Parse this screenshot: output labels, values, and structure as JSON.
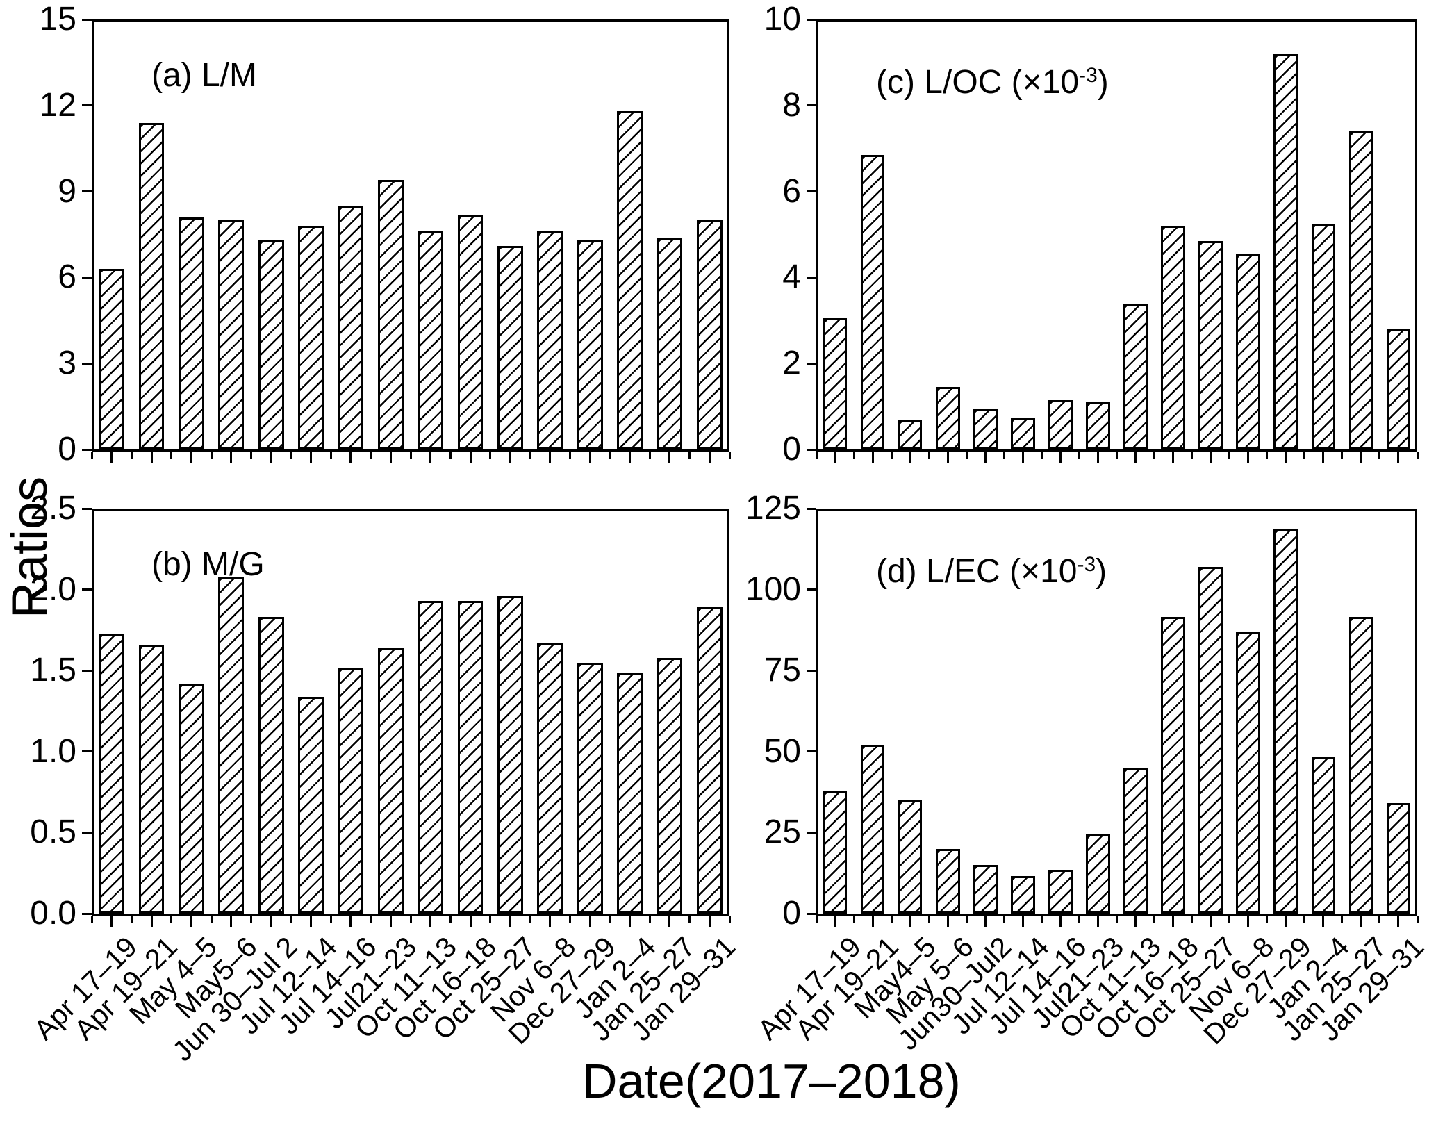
{
  "figure": {
    "ylabel": "Ratios",
    "xlabel": "Date(2017–2018)"
  },
  "chart_data": [
    {
      "id": "a",
      "type": "bar",
      "title_main": "(a) L/M",
      "title_sup": "",
      "title_close": "",
      "ylim": [
        0,
        15
      ],
      "ytick_labels": [
        "0",
        "3",
        "6",
        "9",
        "12",
        "15"
      ],
      "grid": false,
      "show_xlabels": false,
      "categories": [
        "Apr 17–19",
        "Apr 19–21",
        "May 4–5",
        "May5–6",
        "Jun 30–Jul 2",
        "Jul 12–14",
        "Jul 14–16",
        "Jul21–23",
        "Oct 11–13",
        "Oct 16–18",
        "Oct 25–27",
        "Nov 6–8",
        "Dec 27–29",
        "Jan 2–4",
        "Jan 25–27",
        "Jan 29–31"
      ],
      "values": [
        6.3,
        11.4,
        8.1,
        8.0,
        7.3,
        7.8,
        8.5,
        9.4,
        7.6,
        8.2,
        7.1,
        7.6,
        7.3,
        11.8,
        7.4,
        8.0
      ]
    },
    {
      "id": "b",
      "type": "bar",
      "title_main": "(b) M/G",
      "title_sup": "",
      "title_close": "",
      "ylim": [
        0,
        2.5
      ],
      "ytick_labels": [
        "0.0",
        "0.5",
        "1.0",
        "1.5",
        "2.0",
        "2.5"
      ],
      "grid": false,
      "show_xlabels": true,
      "categories": [
        "Apr 17–19",
        "Apr 19–21",
        "May 4–5",
        "May5–6",
        "Jun 30–Jul 2",
        "Jul 12–14",
        "Jul 14–16",
        "Jul21–23",
        "Oct 11–13",
        "Oct 16–18",
        "Oct 25–27",
        "Nov 6–8",
        "Dec 27–29",
        "Jan 2–4",
        "Jan 25–27",
        "Jan 29–31"
      ],
      "values": [
        1.73,
        1.66,
        1.42,
        2.08,
        1.83,
        1.34,
        1.52,
        1.64,
        1.93,
        1.93,
        1.96,
        1.67,
        1.55,
        1.49,
        1.58,
        1.89
      ]
    },
    {
      "id": "c",
      "type": "bar",
      "title_main": "(c) L/OC (×10",
      "title_sup": "-3",
      "title_close": ")",
      "ylim": [
        0,
        10
      ],
      "ytick_labels": [
        "0",
        "2",
        "4",
        "6",
        "8",
        "10"
      ],
      "grid": false,
      "show_xlabels": false,
      "categories": [
        "Apr 17–19",
        "Apr 19–21",
        "May4–5",
        "May 5–6",
        "Jun30–Jul2",
        "Jul 12–14",
        "Jul 14–16",
        "Jul21–23",
        "Oct 11–13",
        "Oct 16–18",
        "Oct 25–27",
        "Nov 6–8",
        "Dec 27–29",
        "Jan 2–4",
        "Jan 25–27",
        "Jan 29–31"
      ],
      "values": [
        3.05,
        6.85,
        0.7,
        1.45,
        0.95,
        0.75,
        1.15,
        1.1,
        3.4,
        5.2,
        4.85,
        4.55,
        9.2,
        5.25,
        7.4,
        2.8
      ]
    },
    {
      "id": "d",
      "type": "bar",
      "title_main": "(d) L/EC (×10",
      "title_sup": "-3",
      "title_close": ")",
      "ylim": [
        0,
        125
      ],
      "ytick_labels": [
        "0",
        "25",
        "50",
        "75",
        "100",
        "125"
      ],
      "grid": false,
      "show_xlabels": true,
      "categories": [
        "Apr 17–19",
        "Apr 19–21",
        "May4–5",
        "May 5–6",
        "Jun30–Jul2",
        "Jul 12–14",
        "Jul 14–16",
        "Jul21–23",
        "Oct 11–13",
        "Oct 16–18",
        "Oct 25–27",
        "Nov 6–8",
        "Dec 27–29",
        "Jan 2–4",
        "Jan 25–27",
        "Jan 29–31"
      ],
      "values": [
        38,
        52,
        35,
        20,
        15,
        11.5,
        13.5,
        24.5,
        45,
        91.5,
        107,
        87,
        118.5,
        48.5,
        91.5,
        34
      ]
    }
  ]
}
